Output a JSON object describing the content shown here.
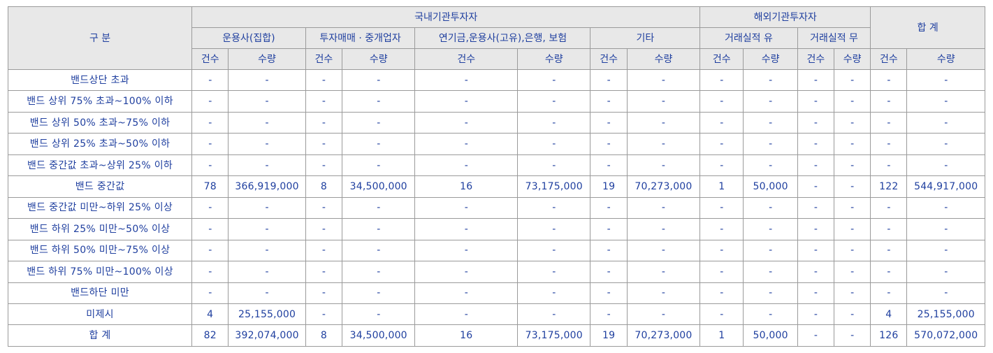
{
  "header": {
    "category": "구 분",
    "domestic": "국내기관투자자",
    "foreign": "해외기관투자자",
    "total": "합 계",
    "groups": {
      "asset_mgmt_collective": "운용사(집합)",
      "dealer_broker": "투자매매 · 중개업자",
      "pension_etc": "연기금,운용사(고유),은행, 보험",
      "other": "기타",
      "with_record": "거래실적 유",
      "without_record": "거래실적 무"
    },
    "count": "건수",
    "quantity": "수량"
  },
  "rows": [
    {
      "label": "밴드상단 초과",
      "v": [
        "-",
        "-",
        "-",
        "-",
        "-",
        "-",
        "-",
        "-",
        "-",
        "-",
        "-",
        "-",
        "-",
        "-"
      ]
    },
    {
      "label": "밴드 상위 75% 초과~100% 이하",
      "v": [
        "-",
        "-",
        "-",
        "-",
        "-",
        "-",
        "-",
        "-",
        "-",
        "-",
        "-",
        "-",
        "-",
        "-"
      ]
    },
    {
      "label": "밴드 상위 50% 초과~75% 이하",
      "v": [
        "-",
        "-",
        "-",
        "-",
        "-",
        "-",
        "-",
        "-",
        "-",
        "-",
        "-",
        "-",
        "-",
        "-"
      ]
    },
    {
      "label": "밴드 상위 25% 초과~50% 이하",
      "v": [
        "-",
        "-",
        "-",
        "-",
        "-",
        "-",
        "-",
        "-",
        "-",
        "-",
        "-",
        "-",
        "-",
        "-"
      ]
    },
    {
      "label": "밴드 중간값 초과~상위 25% 이하",
      "v": [
        "-",
        "-",
        "-",
        "-",
        "-",
        "-",
        "-",
        "-",
        "-",
        "-",
        "-",
        "-",
        "-",
        "-"
      ]
    },
    {
      "label": "밴드 중간값",
      "v": [
        "78",
        "366,919,000",
        "8",
        "34,500,000",
        "16",
        "73,175,000",
        "19",
        "70,273,000",
        "1",
        "50,000",
        "-",
        "-",
        "122",
        "544,917,000"
      ]
    },
    {
      "label": "밴드 중간값 미만~하위 25% 이상",
      "v": [
        "-",
        "-",
        "-",
        "-",
        "-",
        "-",
        "-",
        "-",
        "-",
        "-",
        "-",
        "-",
        "-",
        "-"
      ]
    },
    {
      "label": "밴드 하위 25% 미만~50% 이상",
      "v": [
        "-",
        "-",
        "-",
        "-",
        "-",
        "-",
        "-",
        "-",
        "-",
        "-",
        "-",
        "-",
        "-",
        "-"
      ]
    },
    {
      "label": "밴드 하위 50% 미만~75% 이상",
      "v": [
        "-",
        "-",
        "-",
        "-",
        "-",
        "-",
        "-",
        "-",
        "-",
        "-",
        "-",
        "-",
        "-",
        "-"
      ]
    },
    {
      "label": "밴드 하위 75% 미만~100% 이상",
      "v": [
        "-",
        "-",
        "-",
        "-",
        "-",
        "-",
        "-",
        "-",
        "-",
        "-",
        "-",
        "-",
        "-",
        "-"
      ]
    },
    {
      "label": "밴드하단 미만",
      "v": [
        "-",
        "-",
        "-",
        "-",
        "-",
        "-",
        "-",
        "-",
        "-",
        "-",
        "-",
        "-",
        "-",
        "-"
      ]
    },
    {
      "label": "미제시",
      "v": [
        "4",
        "25,155,000",
        "-",
        "-",
        "-",
        "-",
        "-",
        "-",
        "-",
        "-",
        "-",
        "-",
        "4",
        "25,155,000"
      ]
    },
    {
      "label": "합 계",
      "v": [
        "82",
        "392,074,000",
        "8",
        "34,500,000",
        "16",
        "73,175,000",
        "19",
        "70,273,000",
        "1",
        "50,000",
        "-",
        "-",
        "126",
        "570,072,000"
      ]
    }
  ]
}
